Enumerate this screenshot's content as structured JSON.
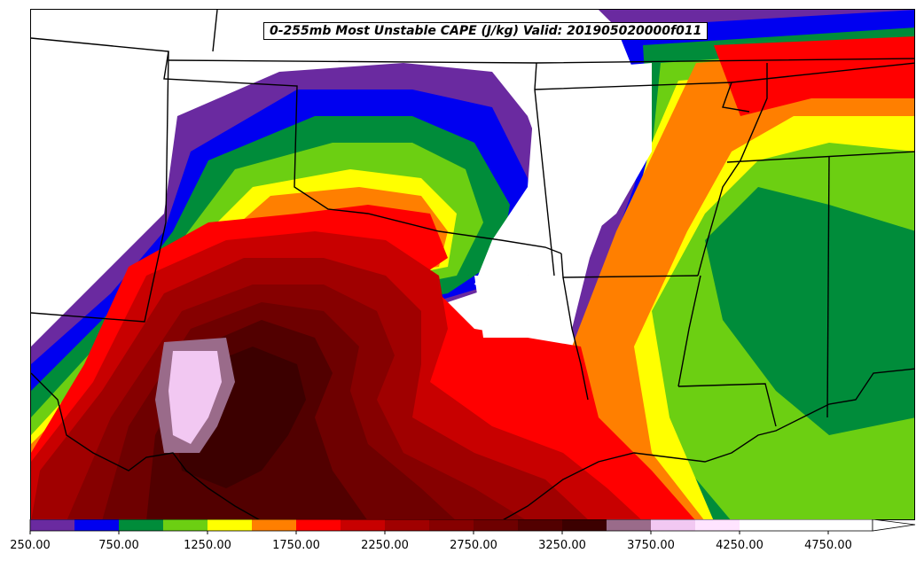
{
  "chart_data": {
    "type": "heatmap",
    "title": "0-255mb Most Unstable CAPE (J/kg) Valid: 201905020000f011",
    "units": "J/kg",
    "colorbar": {
      "levels": [
        250,
        500,
        750,
        1000,
        1250,
        1500,
        1750,
        2000,
        2250,
        2500,
        2750,
        3000,
        3250,
        3500,
        3750,
        4000,
        4250,
        4500,
        4750,
        5000
      ],
      "colors": [
        "#6a2aa0",
        "#0000f0",
        "#008c3a",
        "#6ccf12",
        "#ffff00",
        "#ff7f00",
        "#ff0000",
        "#c80000",
        "#a00000",
        "#860000",
        "#6e0000",
        "#520000",
        "#3c0000",
        "#9a6b8a",
        "#f2c8f2",
        "#ffe4ff",
        "#ffffff",
        "#ffffff",
        "#ffffff"
      ],
      "tick_labels": [
        "250.00",
        "750.00",
        "1250.00",
        "1750.00",
        "2250.00",
        "2750.00",
        "3250.00",
        "3750.00",
        "4250.00",
        "4750.00"
      ],
      "extend": "max"
    },
    "map_region": "Southern Plains / Gulf Coast, USA",
    "features": [
      "state borders",
      "coastline",
      "international border"
    ]
  }
}
